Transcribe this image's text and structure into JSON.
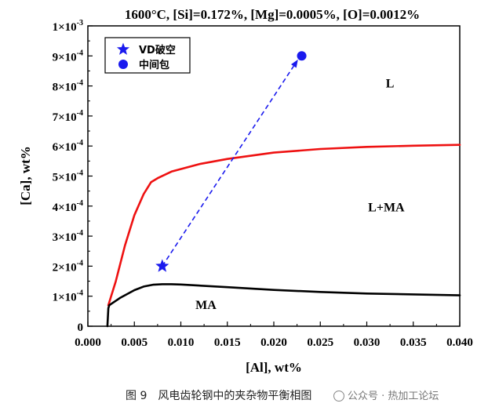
{
  "chart_data": {
    "type": "line",
    "title": "1600°C, [Si]=0.172%, [Mg]=0.0005%, [O]=0.0012%",
    "xlabel": "[Al], wt%",
    "ylabel": "[Ca], wt%",
    "xlim": [
      0.0,
      0.04
    ],
    "ylim": [
      0,
      0.001
    ],
    "x_ticks": [
      "0.000",
      "0.005",
      "0.010",
      "0.015",
      "0.020",
      "0.025",
      "0.030",
      "0.035",
      "0.040"
    ],
    "y_ticks": [
      {
        "value": 0,
        "mant": "0",
        "exp": ""
      },
      {
        "value": 0.0001,
        "mant": "1×10",
        "exp": "-4"
      },
      {
        "value": 0.0002,
        "mant": "2×10",
        "exp": "-4"
      },
      {
        "value": 0.0003,
        "mant": "3×10",
        "exp": "-4"
      },
      {
        "value": 0.0004,
        "mant": "4×10",
        "exp": "-4"
      },
      {
        "value": 0.0005,
        "mant": "5×10",
        "exp": "-4"
      },
      {
        "value": 0.0006,
        "mant": "6×10",
        "exp": "-4"
      },
      {
        "value": 0.0007,
        "mant": "7×10",
        "exp": "-4"
      },
      {
        "value": 0.0008,
        "mant": "8×10",
        "exp": "-4"
      },
      {
        "value": 0.0009,
        "mant": "9×10",
        "exp": "-4"
      },
      {
        "value": 0.001,
        "mant": "1×10",
        "exp": "-3"
      }
    ],
    "grid": false,
    "legend_position": "top-left",
    "boundaries": [
      {
        "color": "#ee1111",
        "x": [
          0.0022,
          0.003,
          0.004,
          0.005,
          0.006,
          0.0068,
          0.0075,
          0.009,
          0.012,
          0.015,
          0.02,
          0.025,
          0.03,
          0.035,
          0.04
        ],
        "y": [
          7e-05,
          0.00015,
          0.00027,
          0.00037,
          0.00044,
          0.00048,
          0.000493,
          0.000515,
          0.00054,
          0.000557,
          0.000578,
          0.00059,
          0.000597,
          0.000601,
          0.000604
        ]
      },
      {
        "color": "#000000",
        "x": [
          0.0021,
          0.0022,
          0.0023,
          0.0035,
          0.005,
          0.006,
          0.007,
          0.008,
          0.009,
          0.01,
          0.015,
          0.02,
          0.025,
          0.03,
          0.035,
          0.04
        ],
        "y": [
          0.0,
          6e-05,
          7e-05,
          9.5e-05,
          0.00012,
          0.000132,
          0.000138,
          0.00014,
          0.00014,
          0.000139,
          0.00013,
          0.000121,
          0.000114,
          0.000109,
          0.000106,
          0.000103
        ]
      }
    ],
    "series": [
      {
        "name": "VD破空",
        "marker": "star",
        "color": "#1a1aee",
        "x": [
          0.008
        ],
        "y": [
          0.0002
        ]
      },
      {
        "name": "中间包",
        "marker": "circle",
        "color": "#1a1aee",
        "x": [
          0.023
        ],
        "y": [
          0.0009
        ]
      }
    ],
    "arrow": {
      "from": [
        0.008,
        0.0002
      ],
      "to": [
        0.0226,
        0.000888
      ],
      "color": "#1a1aee",
      "style": "dashed"
    },
    "region_labels": [
      {
        "text": "L",
        "x": 0.0325,
        "y": 0.000795
      },
      {
        "text": "L+MA",
        "x": 0.0321,
        "y": 0.000383
      },
      {
        "text": "MA",
        "x": 0.0127,
        "y": 5.8e-05
      }
    ]
  },
  "caption": "图 9　风电齿轮钢中的夹杂物平衡相图",
  "watermark": "公众号 · 热加工论坛"
}
